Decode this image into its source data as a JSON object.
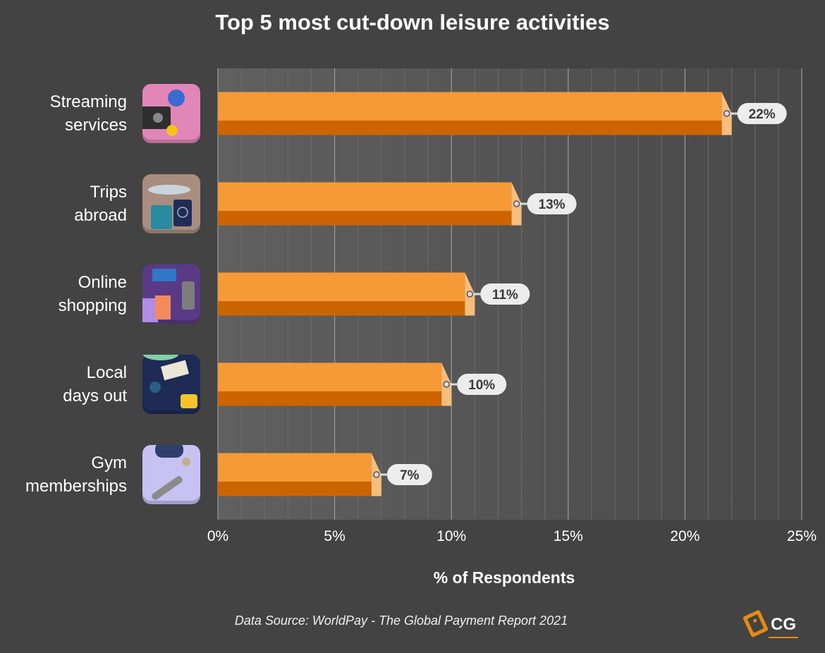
{
  "title": "Top 5 most cut-down leisure activities",
  "x_axis_label": "% of Respondents",
  "source": "Data Source: WorldPay - The Global Payment Report 2021",
  "logo_text": "CG",
  "colors": {
    "background": "#434343",
    "bar_top": "#f59a36",
    "bar_bottom": "#cc6500",
    "bar_end": "#f7bd7c",
    "label_pill": "#ececec",
    "label_text": "#3a3a3a",
    "logo_orange": "#e98a12"
  },
  "chart_data": {
    "type": "bar",
    "orientation": "horizontal",
    "categories": [
      "Streaming services",
      "Trips abroad",
      "Online shopping",
      "Local days out",
      "Gym memberships"
    ],
    "category_lines": [
      [
        "Streaming",
        "services"
      ],
      [
        "Trips",
        "abroad"
      ],
      [
        "Online",
        "shopping"
      ],
      [
        "Local",
        "days out"
      ],
      [
        "Gym",
        "memberships"
      ]
    ],
    "category_icons": [
      "streaming-icon",
      "plane-travel-icon",
      "shopping-bags-icon",
      "parachute-tickets-icon",
      "dumbbell-gym-icon"
    ],
    "icon_colors": [
      "#e186b6",
      "#a98e7f",
      "#5a3a86",
      "#1d2b55",
      "#c6c3f3"
    ],
    "values": [
      22,
      13,
      11,
      10,
      7
    ],
    "value_labels": [
      "22%",
      "13%",
      "11%",
      "10%",
      "7%"
    ],
    "xlabel": "% of Respondents",
    "ylabel": "",
    "xlim": [
      0,
      25
    ],
    "xticks": [
      0,
      5,
      10,
      15,
      20,
      25
    ],
    "xtick_labels": [
      "0%",
      "5%",
      "10%",
      "15%",
      "20%",
      "25%"
    ],
    "grid": true
  }
}
